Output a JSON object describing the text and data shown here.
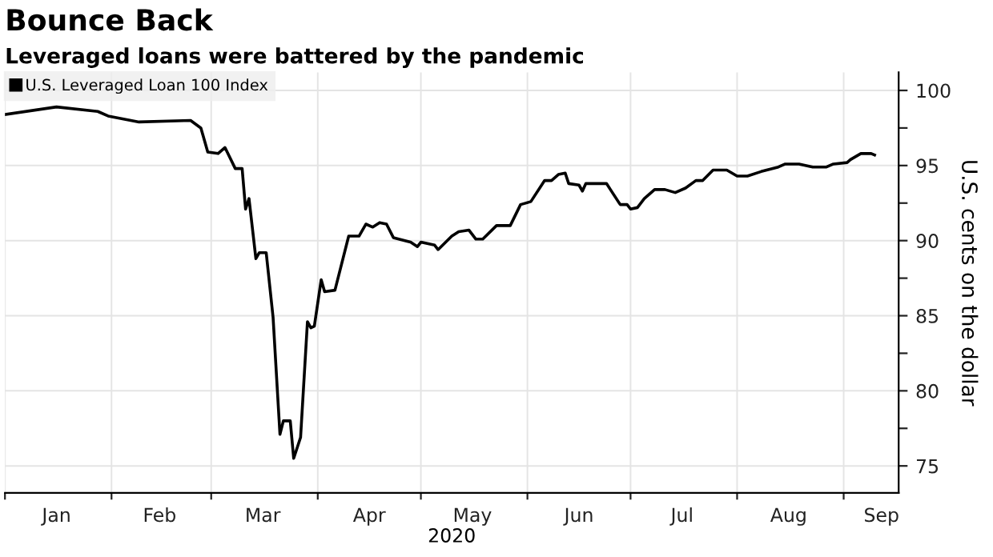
{
  "chart_data": {
    "type": "line",
    "title": "Bounce Back",
    "subtitle": "Leveraged loans were battered by the pandemic",
    "ylabel": "U.S. cents on the dollar",
    "xlabel": "2020",
    "x": [
      "2020-01-01",
      "2020-01-16",
      "2020-01-28",
      "2020-01-31",
      "2020-02-09",
      "2020-02-24",
      "2020-02-27",
      "2020-02-29",
      "2020-03-03",
      "2020-03-05",
      "2020-03-08",
      "2020-03-10",
      "2020-03-11",
      "2020-03-12",
      "2020-03-14",
      "2020-03-15",
      "2020-03-17",
      "2020-03-19",
      "2020-03-21",
      "2020-03-22",
      "2020-03-24",
      "2020-03-25",
      "2020-03-27",
      "2020-03-29",
      "2020-03-30",
      "2020-03-31",
      "2020-04-02",
      "2020-04-03",
      "2020-04-06",
      "2020-04-10",
      "2020-04-13",
      "2020-04-15",
      "2020-04-17",
      "2020-04-19",
      "2020-04-21",
      "2020-04-23",
      "2020-04-28",
      "2020-04-30",
      "2020-05-01",
      "2020-05-05",
      "2020-05-06",
      "2020-05-10",
      "2020-05-12",
      "2020-05-15",
      "2020-05-17",
      "2020-05-19",
      "2020-05-23",
      "2020-05-27",
      "2020-05-30",
      "2020-06-02",
      "2020-06-06",
      "2020-06-08",
      "2020-06-10",
      "2020-06-12",
      "2020-06-13",
      "2020-06-16",
      "2020-06-17",
      "2020-06-18",
      "2020-06-21",
      "2020-06-24",
      "2020-06-28",
      "2020-06-30",
      "2020-07-01",
      "2020-07-03",
      "2020-07-05",
      "2020-07-06",
      "2020-07-08",
      "2020-07-11",
      "2020-07-14",
      "2020-07-17",
      "2020-07-20",
      "2020-07-22",
      "2020-07-25",
      "2020-07-29",
      "2020-08-01",
      "2020-08-04",
      "2020-08-08",
      "2020-08-13",
      "2020-08-15",
      "2020-08-19",
      "2020-08-23",
      "2020-08-27",
      "2020-08-29",
      "2020-09-02",
      "2020-09-03",
      "2020-09-06",
      "2020-09-09",
      "2020-09-10"
    ],
    "series": [
      {
        "name": "U.S. Leveraged Loan 100 Index",
        "color": "#000000",
        "values": [
          98.4,
          98.9,
          98.6,
          98.3,
          97.9,
          98.0,
          97.5,
          95.9,
          95.8,
          96.2,
          94.8,
          94.8,
          92.1,
          92.8,
          88.8,
          89.2,
          89.2,
          84.9,
          77.1,
          78.0,
          78.0,
          75.5,
          76.9,
          84.6,
          84.2,
          84.3,
          87.4,
          86.6,
          86.7,
          90.3,
          90.3,
          91.1,
          90.9,
          91.2,
          91.1,
          90.2,
          89.9,
          89.6,
          89.9,
          89.7,
          89.4,
          90.3,
          90.6,
          90.7,
          90.1,
          90.1,
          91.0,
          91.0,
          92.4,
          92.6,
          94.0,
          94.0,
          94.4,
          94.5,
          93.8,
          93.7,
          93.3,
          93.8,
          93.8,
          93.8,
          92.4,
          92.4,
          92.1,
          92.2,
          92.8,
          93.0,
          93.4,
          93.4,
          93.2,
          93.5,
          94.0,
          94.0,
          94.7,
          94.7,
          94.3,
          94.3,
          94.6,
          94.9,
          95.1,
          95.1,
          94.9,
          94.9,
          95.1,
          95.2,
          95.4,
          95.8,
          95.8,
          95.7
        ]
      }
    ],
    "xlim": [
      "2020-01-01",
      "2020-09-17"
    ],
    "xticks": [
      {
        "value": "2020-01-01",
        "label": null
      },
      {
        "value": "2020-01-16",
        "label": "Jan"
      },
      {
        "value": "2020-02-01",
        "label": null
      },
      {
        "value": "2020-02-15",
        "label": "Feb"
      },
      {
        "value": "2020-03-01",
        "label": null
      },
      {
        "value": "2020-03-16",
        "label": "Mar"
      },
      {
        "value": "2020-04-01",
        "label": null
      },
      {
        "value": "2020-04-16",
        "label": "Apr"
      },
      {
        "value": "2020-05-01",
        "label": null
      },
      {
        "value": "2020-05-16",
        "label": "May"
      },
      {
        "value": "2020-06-01",
        "label": null
      },
      {
        "value": "2020-06-16",
        "label": "Jun"
      },
      {
        "value": "2020-07-01",
        "label": null
      },
      {
        "value": "2020-07-16",
        "label": "Jul"
      },
      {
        "value": "2020-08-01",
        "label": null
      },
      {
        "value": "2020-08-16",
        "label": "Aug"
      },
      {
        "value": "2020-09-01",
        "label": null
      },
      {
        "value": "2020-09-12",
        "label": "Sep"
      }
    ],
    "ylim": [
      73.2,
      101.2
    ],
    "yticks": [
      75,
      {
        "value": 77.5,
        "label": null
      },
      80,
      {
        "value": 82.5,
        "label": null
      },
      85,
      {
        "value": 87.5,
        "label": null
      },
      90,
      {
        "value": 92.5,
        "label": null
      },
      95,
      {
        "value": 97.5,
        "label": null
      },
      100
    ],
    "grid": true,
    "legend": "top left",
    "line_style": "solid",
    "marker": "none"
  }
}
